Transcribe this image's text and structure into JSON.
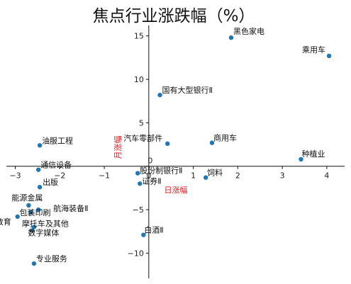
{
  "chart_data": {
    "type": "scatter",
    "title": "焦点行业涨跌幅（%）",
    "xlabel": "日涨幅",
    "ylabel": "月涨幅",
    "xlim": [
      -3.2,
      4.4
    ],
    "ylim": [
      -12.9,
      16.2
    ],
    "xticks": [
      -3,
      -2,
      -1,
      0,
      1,
      2,
      3,
      4
    ],
    "yticks": [
      -10,
      -5,
      0,
      5,
      10,
      15
    ],
    "grid": false,
    "legend": "none",
    "axis_label_color": "#e0191f",
    "marker_color": "#1f77b4",
    "points": [
      {
        "name": "乘用车",
        "x": 4.05,
        "y": 12.7
      },
      {
        "name": "黑色家电",
        "x": 1.85,
        "y": 14.8
      },
      {
        "name": "国有大型银行Ⅱ",
        "x": 0.25,
        "y": 8.2
      },
      {
        "name": "商用车",
        "x": 1.42,
        "y": 2.7
      },
      {
        "name": "汽车零部件",
        "x": 0.42,
        "y": 2.6
      },
      {
        "name": "种植业",
        "x": 3.42,
        "y": 0.8
      },
      {
        "name": "油服工程",
        "x": -2.45,
        "y": 2.4
      },
      {
        "name": "通信设备",
        "x": -2.48,
        "y": -0.4
      },
      {
        "name": "股份制银行Ⅱ",
        "x": -0.25,
        "y": -0.8
      },
      {
        "name": "饲料",
        "x": 1.28,
        "y": -1.3
      },
      {
        "name": "证券Ⅱ",
        "x": -0.2,
        "y": -2.0
      },
      {
        "name": "出版",
        "x": -2.45,
        "y": -2.4
      },
      {
        "name": "能源金属",
        "x": -2.7,
        "y": -4.5
      },
      {
        "name": "航海装备Ⅱ",
        "x": -2.48,
        "y": -5.0
      },
      {
        "name": "包装印刷",
        "x": -2.65,
        "y": -5.3
      },
      {
        "name": "摩托车及其他",
        "x": -2.58,
        "y": -7.0
      },
      {
        "name": "教育",
        "x": -2.95,
        "y": -5.8
      },
      {
        "name": "数字媒体",
        "x": -2.62,
        "y": -7.4
      },
      {
        "name": "白酒Ⅱ",
        "x": -0.12,
        "y": -7.9
      },
      {
        "name": "专业服务",
        "x": -2.58,
        "y": -11.2
      }
    ]
  }
}
